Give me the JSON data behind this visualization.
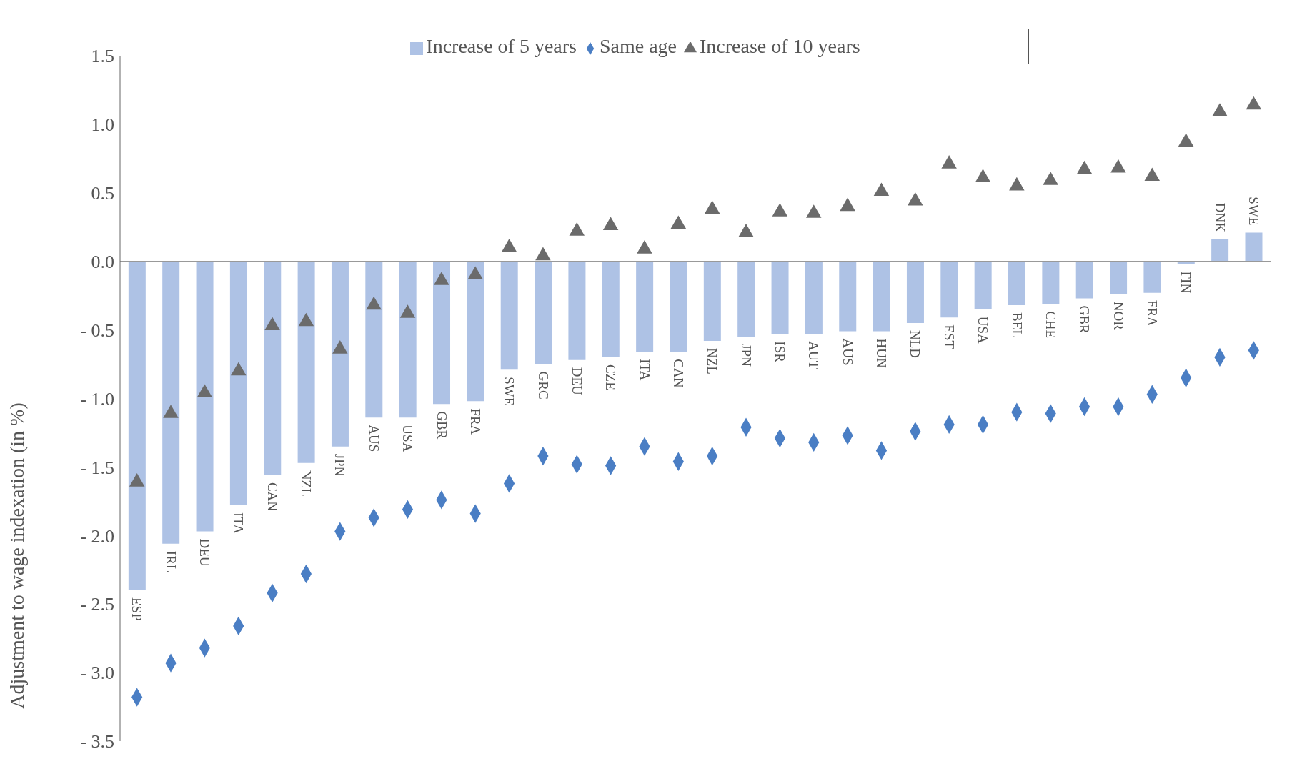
{
  "chart_data": {
    "type": "bar",
    "ylabel": "Adjustment to wage indexation (in %)",
    "categories": [
      "ESP",
      "IRL",
      "DEU",
      "ITA",
      "CAN",
      "NZL",
      "JPN",
      "AUS",
      "USA",
      "GBR",
      "FRA",
      "SWE",
      "GRC",
      "DEU",
      "CZE",
      "ITA",
      "CAN",
      "NZL",
      "JPN",
      "ISR",
      "AUT",
      "AUS",
      "HUN",
      "NLD",
      "EST",
      "USA",
      "BEL",
      "CHE",
      "GBR",
      "NOR",
      "FRA",
      "FIN",
      "DNK",
      "SWE"
    ],
    "series": [
      {
        "name": "Increase of 5 years",
        "color": "#aec2e5",
        "values": [
          -2.4,
          -2.06,
          -1.97,
          -1.78,
          -1.56,
          -1.47,
          -1.35,
          -1.14,
          -1.14,
          -1.04,
          -1.02,
          -0.79,
          -0.75,
          -0.72,
          -0.7,
          -0.66,
          -0.66,
          -0.58,
          -0.55,
          -0.53,
          -0.53,
          -0.51,
          -0.51,
          -0.45,
          -0.41,
          -0.35,
          -0.32,
          -0.31,
          -0.27,
          -0.24,
          -0.23,
          -0.02,
          0.16,
          0.21
        ]
      },
      {
        "name": "Same age",
        "type": "scatter",
        "marker": "diamond",
        "color": "#4a7ec4",
        "values": [
          -3.18,
          -2.93,
          -2.82,
          -2.66,
          -2.42,
          -2.28,
          -1.97,
          -1.87,
          -1.81,
          -1.74,
          -1.84,
          -1.62,
          -1.42,
          -1.48,
          -1.49,
          -1.35,
          -1.46,
          -1.42,
          -1.21,
          -1.29,
          -1.32,
          -1.27,
          -1.38,
          -1.24,
          -1.19,
          -1.19,
          -1.1,
          -1.11,
          -1.06,
          -1.06,
          -0.97,
          -0.85,
          -0.7,
          -0.65
        ]
      },
      {
        "name": "Increase of 10 years",
        "type": "scatter",
        "marker": "triangle",
        "color": "#6b6b6b",
        "values": [
          -1.61,
          -1.11,
          -0.96,
          -0.8,
          -0.47,
          -0.44,
          -0.64,
          -0.32,
          -0.38,
          -0.14,
          -0.1,
          0.1,
          0.04,
          0.22,
          0.26,
          0.09,
          0.27,
          0.38,
          0.21,
          0.36,
          0.35,
          0.4,
          0.51,
          0.44,
          0.71,
          0.61,
          0.55,
          0.59,
          0.67,
          0.68,
          0.62,
          0.87,
          1.09,
          1.14
        ]
      }
    ],
    "ylim": [
      -3.5,
      1.5
    ],
    "yticks": [
      {
        "value": -3.5,
        "label": "- 3.5"
      },
      {
        "value": -3.0,
        "label": "- 3.0"
      },
      {
        "value": -2.5,
        "label": "- 2.5"
      },
      {
        "value": -2.0,
        "label": "- 2.0"
      },
      {
        "value": -1.5,
        "label": "- 1.5"
      },
      {
        "value": -1.0,
        "label": "- 1.0"
      },
      {
        "value": -0.5,
        "label": "- 0.5"
      },
      {
        "value": 0,
        "label": "0.0"
      },
      {
        "value": 0.5,
        "label": "0.5"
      },
      {
        "value": 1.0,
        "label": "1.0"
      },
      {
        "value": 1.5,
        "label": "1.5"
      }
    ],
    "legend": "top"
  }
}
